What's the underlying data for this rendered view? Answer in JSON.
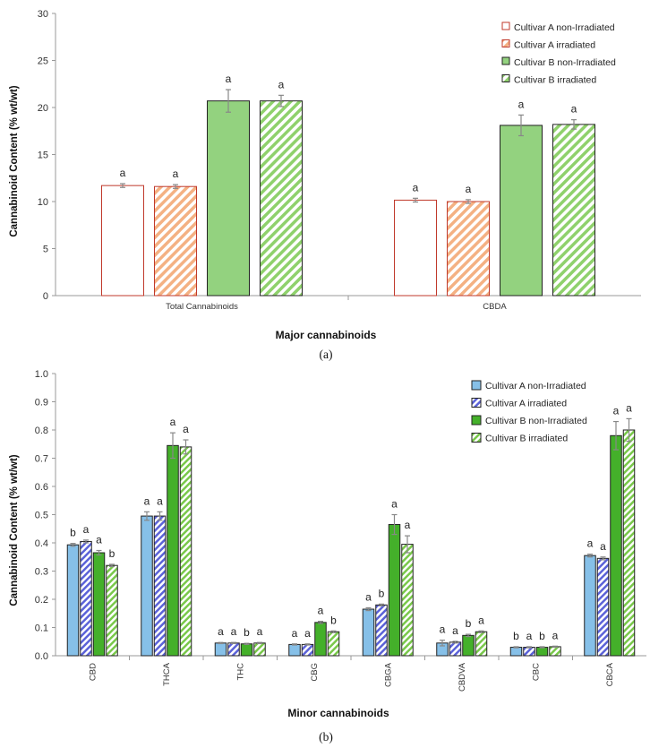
{
  "colors": {
    "a_nonirr_fill": "#ffffff",
    "a_nonirr_stroke": "#c0392b",
    "a_irr_hatch": "#f4b183",
    "a_irr_stroke": "#c0392b",
    "b_nonirr_fill": "#93d27f",
    "b_irr_hatch": "#8fd16c",
    "a_nonirr_fill_b": "#86c0e8",
    "a_irr_hatch_b": "#5b62d8",
    "b_nonirr_fill_b": "#44b02a",
    "b_irr_hatch_b": "#79c84a",
    "dark_stroke": "#222222",
    "axis": "#999999",
    "error_bar": "#888888"
  },
  "chart_data": [
    {
      "id": "a",
      "type": "bar",
      "caption": "(a)",
      "title": "",
      "xlabel": "Major cannabinoids",
      "ylabel": "Cannabinoid Content (% wt/wt)",
      "ylim": [
        0,
        30
      ],
      "yticks": [
        "0",
        "5",
        "10",
        "15",
        "20",
        "25",
        "30"
      ],
      "ytick_values": [
        0,
        5,
        10,
        15,
        20,
        25,
        30
      ],
      "legend_position": "top-right",
      "categories": [
        "Total Cannabinoids",
        "CBDA"
      ],
      "series": [
        {
          "name": "Cultivar A non-Irradiated",
          "style": "a_nonirr",
          "values": [
            11.7,
            10.15
          ],
          "errors": [
            0.2,
            0.2
          ],
          "labels": [
            "a",
            "a"
          ]
        },
        {
          "name": "Cultivar A irradiated",
          "style": "a_irr",
          "values": [
            11.6,
            10.0
          ],
          "errors": [
            0.2,
            0.2
          ],
          "labels": [
            "a",
            "a"
          ]
        },
        {
          "name": "Cultivar B non-Irradiated",
          "style": "b_nonirr",
          "values": [
            20.7,
            18.1
          ],
          "errors": [
            1.2,
            1.1
          ],
          "labels": [
            "a",
            "a"
          ]
        },
        {
          "name": "Cultivar B irradiated",
          "style": "b_irr",
          "values": [
            20.7,
            18.2
          ],
          "errors": [
            0.6,
            0.5
          ],
          "labels": [
            "a",
            "a"
          ]
        }
      ]
    },
    {
      "id": "b",
      "type": "bar",
      "caption": "(b)",
      "title": "",
      "xlabel": "Minor cannabinoids",
      "ylabel": "Cannabinoid Content (% wt/wt)",
      "ylim": [
        0,
        1.0
      ],
      "yticks": [
        "0.0",
        "0.1",
        "0.2",
        "0.3",
        "0.4",
        "0.5",
        "0.6",
        "0.7",
        "0.8",
        "0.9",
        "1.0"
      ],
      "ytick_values": [
        0,
        0.1,
        0.2,
        0.3,
        0.4,
        0.5,
        0.6,
        0.7,
        0.8,
        0.9,
        1.0
      ],
      "legend_position": "top-right",
      "categories": [
        "CBD",
        "THCA",
        "THC",
        "CBG",
        "CBGA",
        "CBDVA",
        "CBC",
        "CBCA"
      ],
      "series": [
        {
          "name": "Cultivar A non-Irradiated",
          "style": "a_nonirr_b",
          "values": [
            0.393,
            0.495,
            0.045,
            0.04,
            0.165,
            0.045,
            0.03,
            0.355
          ],
          "errors": [
            0.005,
            0.015,
            0.002,
            0.002,
            0.005,
            0.01,
            0.002,
            0.005
          ],
          "labels": [
            "b",
            "a",
            "a",
            "a",
            "a",
            "a",
            "b",
            "a"
          ]
        },
        {
          "name": "Cultivar A irradiated",
          "style": "a_irr_b",
          "values": [
            0.405,
            0.495,
            0.045,
            0.04,
            0.18,
            0.048,
            0.03,
            0.345
          ],
          "errors": [
            0.005,
            0.015,
            0.002,
            0.002,
            0.003,
            0.003,
            0.002,
            0.005
          ],
          "labels": [
            "a",
            "a",
            "a",
            "a",
            "b",
            "a",
            "a",
            "a"
          ]
        },
        {
          "name": "Cultivar B non-Irradiated",
          "style": "b_nonirr_b",
          "values": [
            0.365,
            0.745,
            0.042,
            0.118,
            0.465,
            0.072,
            0.03,
            0.78
          ],
          "errors": [
            0.008,
            0.045,
            0.002,
            0.004,
            0.035,
            0.004,
            0.002,
            0.05
          ],
          "labels": [
            "a",
            "a",
            "b",
            "a",
            "a",
            "b",
            "b",
            "a"
          ]
        },
        {
          "name": "Cultivar B irradiated",
          "style": "b_irr_b",
          "values": [
            0.32,
            0.74,
            0.045,
            0.085,
            0.395,
            0.085,
            0.032,
            0.8
          ],
          "errors": [
            0.004,
            0.025,
            0.002,
            0.003,
            0.03,
            0.003,
            0.002,
            0.04
          ],
          "labels": [
            "b",
            "a",
            "a",
            "b",
            "a",
            "a",
            "a",
            "a"
          ]
        }
      ]
    }
  ]
}
